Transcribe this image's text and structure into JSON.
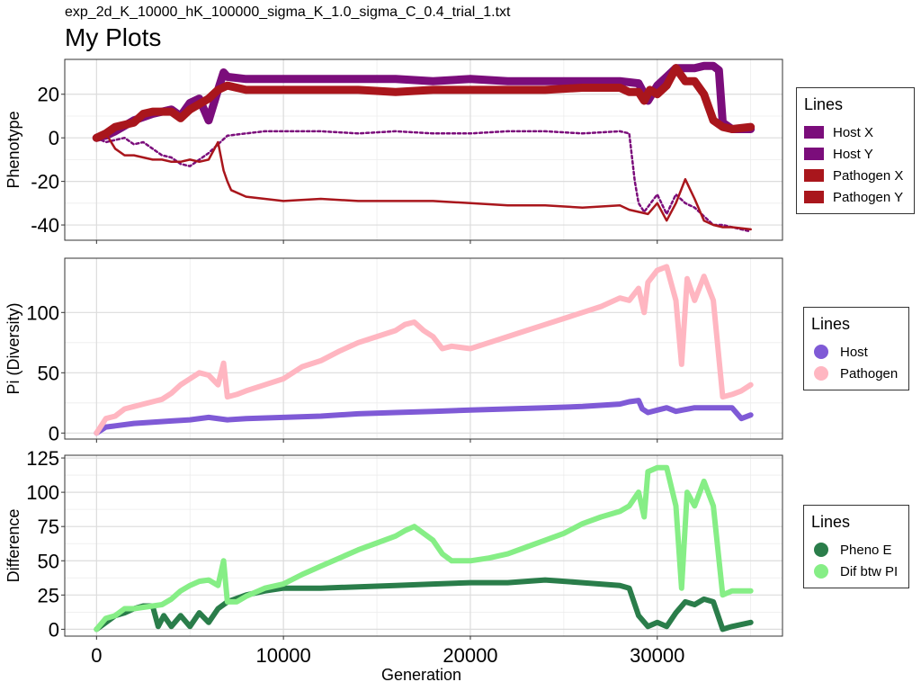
{
  "subtitle": "exp_2d_K_10000_hK_100000_sigma_K_1.0_sigma_C_0.4_trial_1.txt",
  "title": "My Plots",
  "chart_data": [
    {
      "type": "line",
      "ylabel": "Phenotype",
      "xlabel": "",
      "xlim": [
        -1700,
        36700
      ],
      "ylim": [
        -47,
        36
      ],
      "yticks": [
        20,
        0,
        -20,
        -40
      ],
      "ytick_labels": [
        "20",
        "0",
        "-20",
        "-40"
      ],
      "xticks": [
        0,
        10000,
        20000,
        30000
      ],
      "grid": true,
      "legend": {
        "title": "Lines",
        "position": "right",
        "shape": "rect"
      },
      "series": [
        {
          "name": "Host X",
          "color": "#7B0D7B",
          "width": 9,
          "x": [
            0,
            500,
            1000,
            2000,
            3000,
            3500,
            4000,
            4500,
            5000,
            5500,
            6000,
            6500,
            6800,
            7000,
            8000,
            10000,
            12000,
            14000,
            16000,
            18000,
            20000,
            22000,
            24000,
            26000,
            28000,
            29000,
            29500,
            30000,
            30500,
            31000,
            31500,
            32000,
            32500,
            33000,
            33300,
            33500,
            34000,
            35000
          ],
          "y": [
            0,
            1,
            3,
            8,
            11,
            12,
            13,
            10,
            16,
            18,
            8,
            22,
            30,
            28,
            27,
            27,
            27,
            27,
            27,
            26,
            27,
            26,
            26,
            26,
            26,
            25,
            17,
            24,
            28,
            32,
            32,
            32,
            33,
            33,
            31,
            7,
            4,
            4
          ]
        },
        {
          "name": "Host Y",
          "color": "#7B0D7B",
          "width": 2.5,
          "dash": "3 3",
          "x": [
            0,
            500,
            1000,
            1500,
            2000,
            2500,
            3000,
            3500,
            4000,
            4500,
            5000,
            5500,
            6000,
            6500,
            7000,
            8000,
            9000,
            10000,
            12000,
            14000,
            16000,
            18000,
            20000,
            22000,
            24000,
            26000,
            28000,
            28500,
            28800,
            29000,
            29300,
            30000,
            30500,
            31000,
            31500,
            32000,
            32500,
            33000,
            33500,
            34000,
            35000
          ],
          "y": [
            0,
            -2,
            -1,
            0,
            -3,
            -2,
            -5,
            -8,
            -9,
            -12,
            -13,
            -10,
            -7,
            -3,
            1,
            2,
            3,
            3,
            3,
            2,
            3,
            2,
            2,
            3,
            3,
            2,
            3,
            2,
            -20,
            -30,
            -34,
            -26,
            -35,
            -26,
            -30,
            -32,
            -36,
            -40,
            -40,
            -41,
            -43
          ]
        },
        {
          "name": "Pathogen X",
          "color": "#A9161C",
          "width": 9,
          "x": [
            0,
            500,
            1000,
            2000,
            2500,
            3000,
            4000,
            4500,
            5000,
            6000,
            6500,
            7000,
            8000,
            10000,
            12000,
            14000,
            16000,
            18000,
            20000,
            22000,
            24000,
            26000,
            28000,
            28500,
            29000,
            29300,
            29600,
            30000,
            30500,
            31000,
            31500,
            32000,
            32500,
            33000,
            33500,
            34000,
            35000
          ],
          "y": [
            0,
            2,
            5,
            7,
            11,
            12,
            12,
            9,
            13,
            18,
            22,
            24,
            22,
            22,
            22,
            22,
            21,
            22,
            22,
            22,
            22,
            23,
            23,
            21,
            21,
            17,
            22,
            20,
            24,
            32,
            26,
            26,
            20,
            8,
            5,
            4,
            5
          ]
        },
        {
          "name": "Pathogen Y",
          "color": "#A9161C",
          "width": 2.5,
          "x": [
            0,
            500,
            1000,
            1500,
            2000,
            2500,
            3000,
            3500,
            4000,
            4500,
            5000,
            5500,
            6000,
            6500,
            6800,
            7000,
            7200,
            8000,
            10000,
            12000,
            14000,
            16000,
            18000,
            20000,
            22000,
            24000,
            26000,
            28000,
            28500,
            29000,
            29500,
            30000,
            30500,
            31000,
            31500,
            32000,
            32500,
            33000,
            33500,
            34000,
            35000
          ],
          "y": [
            0,
            2,
            -5,
            -8,
            -8,
            -9,
            -10,
            -10,
            -11,
            -11,
            -10,
            -11,
            -10,
            -2,
            -15,
            -20,
            -24,
            -27,
            -29,
            -28,
            -29,
            -29,
            -29,
            -30,
            -31,
            -31,
            -32,
            -31,
            -33,
            -34,
            -35,
            -30,
            -38,
            -30,
            -19,
            -28,
            -38,
            -40,
            -41,
            -41,
            -42
          ]
        }
      ]
    },
    {
      "type": "line",
      "ylabel": "Pi (Diversity)",
      "xlabel": "",
      "xlim": [
        -1700,
        36700
      ],
      "ylim": [
        -5,
        145
      ],
      "yticks": [
        100,
        50,
        0
      ],
      "ytick_labels": [
        "100",
        "50",
        "0"
      ],
      "xticks": [
        0,
        10000,
        20000,
        30000
      ],
      "grid": true,
      "legend": {
        "title": "Lines",
        "position": "right",
        "shape": "dot"
      },
      "series": [
        {
          "name": "Host",
          "color": "#7F5AD6",
          "width": 6,
          "x": [
            0,
            500,
            1000,
            2000,
            3000,
            4000,
            5000,
            6000,
            7000,
            8000,
            10000,
            12000,
            14000,
            16000,
            18000,
            20000,
            22000,
            24000,
            26000,
            28000,
            28500,
            29000,
            29200,
            29500,
            30000,
            30500,
            31000,
            32000,
            33000,
            34000,
            34500,
            35000
          ],
          "y": [
            0,
            5,
            6,
            8,
            9,
            10,
            11,
            13,
            11,
            12,
            13,
            14,
            16,
            17,
            18,
            19,
            20,
            21,
            22,
            24,
            26,
            27,
            20,
            17,
            19,
            21,
            18,
            21,
            21,
            21,
            12,
            15
          ]
        },
        {
          "name": "Pathogen",
          "color": "#FFB6C1",
          "width": 6,
          "x": [
            0,
            500,
            1000,
            1500,
            2000,
            2500,
            3000,
            3500,
            4000,
            4500,
            5000,
            5500,
            6000,
            6500,
            6800,
            7000,
            7500,
            8000,
            9000,
            10000,
            11000,
            12000,
            13000,
            14000,
            15000,
            16000,
            16500,
            17000,
            17500,
            18000,
            18500,
            19000,
            20000,
            21000,
            22000,
            23000,
            24000,
            25000,
            26000,
            27000,
            28000,
            28500,
            29000,
            29300,
            29500,
            30000,
            30500,
            31000,
            31300,
            31600,
            32000,
            32500,
            33000,
            33500,
            34000,
            34500,
            35000
          ],
          "y": [
            0,
            12,
            14,
            20,
            22,
            24,
            26,
            28,
            33,
            40,
            45,
            50,
            48,
            40,
            58,
            30,
            32,
            35,
            40,
            45,
            55,
            60,
            68,
            75,
            80,
            85,
            90,
            92,
            85,
            80,
            70,
            72,
            70,
            75,
            80,
            85,
            90,
            95,
            100,
            105,
            112,
            110,
            120,
            100,
            125,
            135,
            138,
            110,
            57,
            128,
            110,
            130,
            110,
            30,
            32,
            35,
            40
          ]
        }
      ]
    },
    {
      "type": "line",
      "ylabel": "Difference",
      "xlabel": "Generation",
      "xlim": [
        -1700,
        36700
      ],
      "ylim": [
        -5,
        127
      ],
      "yticks": [
        125,
        100,
        75,
        50,
        25,
        0
      ],
      "ytick_labels": [
        "125",
        "100",
        "75",
        "50",
        "25",
        "0"
      ],
      "xticks": [
        0,
        10000,
        20000,
        30000
      ],
      "xtick_labels": [
        "0",
        "10000",
        "20000",
        "30000"
      ],
      "grid": true,
      "legend": {
        "title": "Lines",
        "position": "right",
        "shape": "dot"
      },
      "series": [
        {
          "name": "Pheno E",
          "color": "#2A7D4A",
          "width": 6,
          "x": [
            0,
            500,
            1000,
            1500,
            2000,
            2500,
            3000,
            3300,
            3600,
            4000,
            4500,
            5000,
            5500,
            6000,
            6500,
            7000,
            8000,
            9000,
            10000,
            12000,
            14000,
            16000,
            18000,
            20000,
            22000,
            24000,
            26000,
            28000,
            28500,
            29000,
            29500,
            30000,
            30500,
            31000,
            31500,
            32000,
            32500,
            33000,
            33500,
            34000,
            35000
          ],
          "y": [
            0,
            5,
            10,
            12,
            15,
            17,
            17,
            2,
            10,
            2,
            10,
            2,
            12,
            5,
            15,
            20,
            25,
            28,
            30,
            30,
            31,
            32,
            33,
            34,
            34,
            36,
            34,
            32,
            30,
            10,
            2,
            5,
            2,
            12,
            20,
            18,
            22,
            20,
            0,
            2,
            5
          ]
        },
        {
          "name": "Dif btw PI",
          "color": "#86EE86",
          "width": 6,
          "x": [
            0,
            500,
            1000,
            1500,
            2000,
            2500,
            3000,
            3500,
            4000,
            4500,
            5000,
            5500,
            6000,
            6500,
            6800,
            7000,
            7500,
            8000,
            9000,
            10000,
            11000,
            12000,
            13000,
            14000,
            15000,
            16000,
            16500,
            17000,
            17500,
            18000,
            18500,
            19000,
            20000,
            21000,
            22000,
            23000,
            24000,
            25000,
            26000,
            27000,
            28000,
            28500,
            29000,
            29300,
            29500,
            30000,
            30500,
            31000,
            31300,
            31600,
            32000,
            32500,
            33000,
            33500,
            34000,
            34500,
            35000
          ],
          "y": [
            0,
            8,
            10,
            15,
            15,
            16,
            17,
            18,
            22,
            28,
            32,
            35,
            36,
            32,
            50,
            20,
            20,
            24,
            30,
            33,
            40,
            46,
            52,
            58,
            63,
            68,
            72,
            75,
            70,
            65,
            55,
            50,
            50,
            52,
            55,
            60,
            65,
            70,
            77,
            82,
            86,
            90,
            100,
            82,
            115,
            118,
            118,
            90,
            30,
            100,
            90,
            108,
            90,
            25,
            28,
            28,
            28
          ]
        }
      ]
    }
  ]
}
